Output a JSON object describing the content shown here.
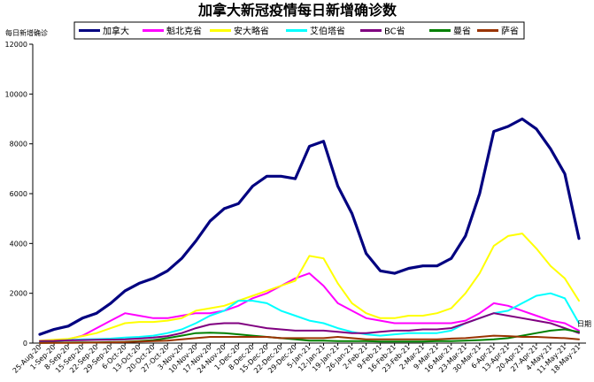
{
  "chart_data": {
    "type": "line",
    "title": "加拿大新冠疫情每日新增确诊数",
    "ylabel": "每日新增确诊",
    "xlabel": "日期",
    "ylim": [
      0,
      12000
    ],
    "yticks": [
      0,
      2000,
      4000,
      6000,
      8000,
      10000,
      12000
    ],
    "grid": false,
    "legend_position": "top",
    "categories": [
      "25-Aug-20",
      "1-Sep-20",
      "8-Sep-20",
      "15-Sep-20",
      "22-Sep-20",
      "29-Sep-20",
      "6-Oct-20",
      "13-Oct-20",
      "20-Oct-20",
      "27-Oct-20",
      "3-Nov-20",
      "10-Nov-20",
      "17-Nov-20",
      "24-Nov-20",
      "1-Dec-20",
      "8-Dec-20",
      "15-Dec-20",
      "22-Dec-20",
      "29-Dec-20",
      "5-Jan-21",
      "12-Jan-21",
      "19-Jan-21",
      "26-Jan-21",
      "2-Feb-21",
      "9-Feb-21",
      "16-Feb-21",
      "23-Feb-21",
      "2-Mar-21",
      "9-Mar-21",
      "16-Mar-21",
      "23-Mar-21",
      "30-Mar-21",
      "6-Apr-21",
      "13-Apr-21",
      "20-Apr-21",
      "27-Apr-21",
      "4-May-21",
      "11-May-21",
      "18-May-21"
    ],
    "series": [
      {
        "name": "加拿大",
        "color": "#000080",
        "width": 3.2,
        "values": [
          350,
          550,
          680,
          1000,
          1200,
          1600,
          2100,
          2400,
          2600,
          2900,
          3400,
          4100,
          4900,
          5400,
          5600,
          6300,
          6700,
          6700,
          6600,
          7900,
          8100,
          6300,
          5200,
          3600,
          2900,
          2800,
          3000,
          3100,
          3100,
          3400,
          4300,
          6000,
          8500,
          8700,
          9000,
          8600,
          7800,
          6800,
          4200
        ]
      },
      {
        "name": "魁北克省",
        "color": "#ff00ff",
        "width": 2,
        "values": [
          90,
          110,
          150,
          300,
          600,
          900,
          1200,
          1100,
          1000,
          1000,
          1100,
          1200,
          1200,
          1300,
          1500,
          1800,
          2000,
          2300,
          2600,
          2800,
          2300,
          1600,
          1300,
          1000,
          900,
          800,
          800,
          800,
          800,
          800,
          900,
          1200,
          1600,
          1500,
          1300,
          1100,
          900,
          800,
          500
        ]
      },
      {
        "name": "安大略省",
        "color": "#ffff00",
        "width": 2,
        "values": [
          100,
          130,
          170,
          280,
          400,
          600,
          800,
          850,
          850,
          900,
          1000,
          1300,
          1400,
          1500,
          1700,
          1900,
          2100,
          2300,
          2500,
          3500,
          3400,
          2400,
          1600,
          1200,
          1000,
          1000,
          1100,
          1100,
          1200,
          1400,
          2000,
          2800,
          3900,
          4300,
          4400,
          3800,
          3100,
          2600,
          1700
        ]
      },
      {
        "name": "艾伯塔省",
        "color": "#00ffff",
        "width": 2,
        "values": [
          60,
          70,
          120,
          150,
          160,
          180,
          220,
          250,
          300,
          400,
          550,
          800,
          1100,
          1300,
          1700,
          1700,
          1600,
          1300,
          1100,
          900,
          800,
          600,
          450,
          350,
          300,
          350,
          400,
          400,
          400,
          500,
          800,
          1000,
          1200,
          1300,
          1600,
          1900,
          2000,
          1800,
          800
        ]
      },
      {
        "name": "BC省",
        "color": "#800080",
        "width": 2,
        "values": [
          80,
          90,
          110,
          120,
          130,
          140,
          150,
          180,
          220,
          280,
          400,
          600,
          750,
          800,
          800,
          700,
          600,
          550,
          500,
          500,
          500,
          450,
          400,
          400,
          450,
          500,
          500,
          550,
          550,
          600,
          800,
          1000,
          1200,
          1100,
          1000,
          900,
          800,
          600,
          400
        ]
      },
      {
        "name": "曼省",
        "color": "#008000",
        "width": 2,
        "values": [
          10,
          15,
          20,
          25,
          30,
          40,
          50,
          80,
          120,
          200,
          300,
          400,
          420,
          400,
          350,
          300,
          250,
          200,
          150,
          100,
          100,
          80,
          80,
          80,
          60,
          60,
          60,
          60,
          80,
          80,
          100,
          120,
          150,
          200,
          300,
          400,
          500,
          550,
          450
        ]
      },
      {
        "name": "萨省",
        "color": "#993300",
        "width": 2,
        "values": [
          5,
          8,
          10,
          15,
          20,
          30,
          40,
          60,
          80,
          100,
          150,
          200,
          250,
          250,
          250,
          250,
          250,
          200,
          200,
          200,
          200,
          250,
          200,
          150,
          150,
          150,
          150,
          150,
          150,
          180,
          200,
          250,
          300,
          280,
          250,
          250,
          220,
          200,
          150
        ]
      }
    ]
  }
}
